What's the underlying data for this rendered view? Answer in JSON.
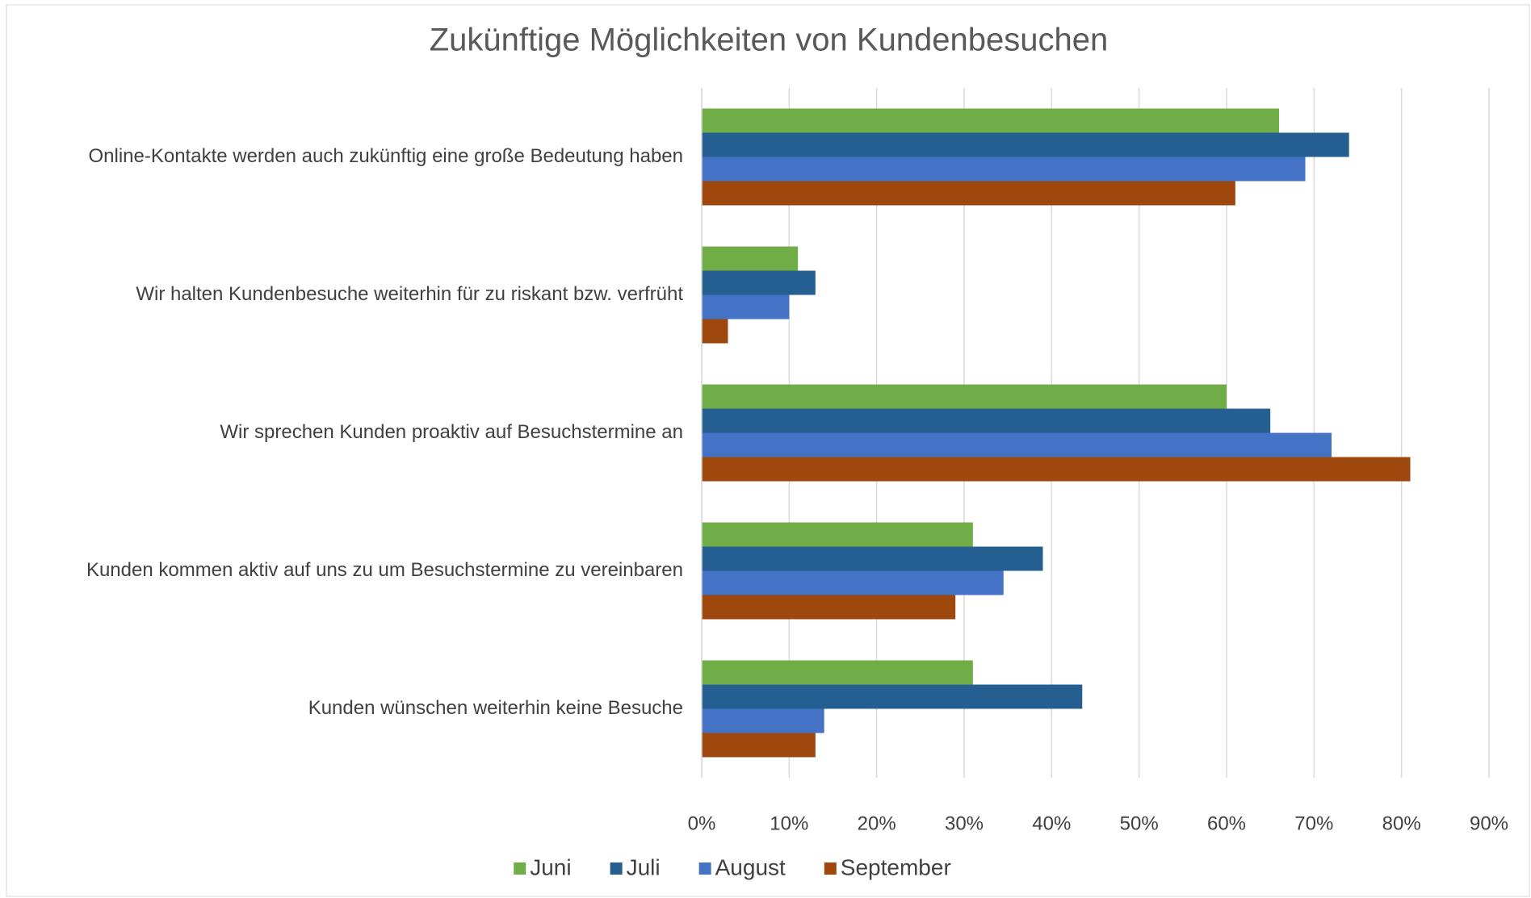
{
  "chart_data": {
    "type": "bar",
    "orientation": "horizontal",
    "title": "Zukünftige Möglichkeiten von Kundenbesuchen",
    "categories": [
      "Online-Kontakte werden auch zukünftig eine große Bedeutung haben",
      "Wir halten Kundenbesuche weiterhin für zu riskant bzw. verfrüht",
      "Wir sprechen Kunden proaktiv auf Besuchstermine an",
      "Kunden kommen aktiv auf uns zu um Besuchstermine zu vereinbaren",
      "Kunden wünschen weiterhin keine Besuche"
    ],
    "series": [
      {
        "name": "Juni",
        "color": "#70ad47",
        "values": [
          66,
          11,
          60,
          31,
          31
        ]
      },
      {
        "name": "Juli",
        "color": "#255e91",
        "values": [
          74,
          13,
          65,
          39,
          43.5
        ]
      },
      {
        "name": "August",
        "color": "#4472c4",
        "values": [
          69,
          10,
          72,
          34.5,
          14
        ]
      },
      {
        "name": "September",
        "color": "#9e480e",
        "values": [
          61,
          3,
          81,
          29,
          13
        ]
      }
    ],
    "xlim": [
      0,
      90
    ],
    "xticks": [
      {
        "value": 0,
        "label": "0%"
      },
      {
        "value": 10,
        "label": "10%"
      },
      {
        "value": 20,
        "label": "20%"
      },
      {
        "value": 30,
        "label": "30%"
      },
      {
        "value": 40,
        "label": "40%"
      },
      {
        "value": 50,
        "label": "50%"
      },
      {
        "value": 60,
        "label": "60%"
      },
      {
        "value": 70,
        "label": "70%"
      },
      {
        "value": 80,
        "label": "80%"
      },
      {
        "value": 90,
        "label": "90%"
      }
    ],
    "grid": true,
    "legend": "bottom"
  }
}
